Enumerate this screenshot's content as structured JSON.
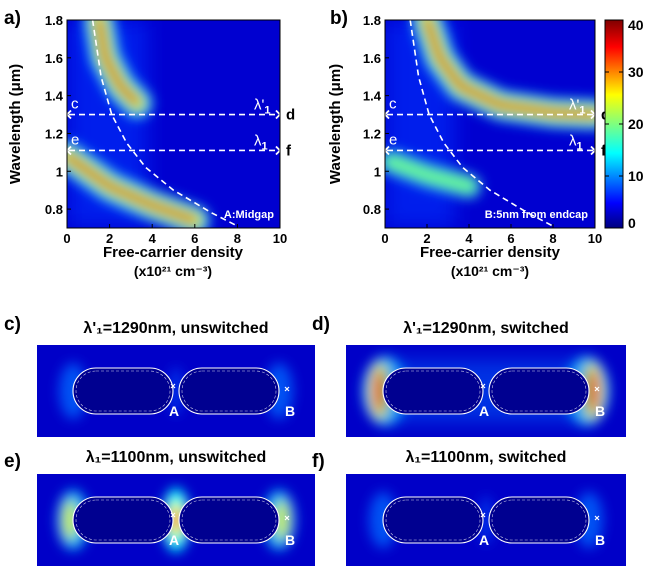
{
  "colors": {
    "jet": [
      "#00007f",
      "#0000ff",
      "#007fff",
      "#00ffff",
      "#7fff7f",
      "#ffff00",
      "#ff7f00",
      "#ff0000",
      "#7f0000"
    ]
  },
  "chart_data": [
    {
      "type": "heatmap",
      "panel": "a)",
      "corner_label": "A:Midgap",
      "xlabel": "Free-carrier density",
      "xlabel_units": "(x10²¹ cm⁻³)",
      "ylabel": "Wavelength (μm)",
      "xlim": [
        0,
        10
      ],
      "ylim": [
        0.7,
        1.8
      ],
      "xticks": [
        "0",
        "2",
        "4",
        "6",
        "8",
        "10"
      ],
      "yticks": [
        "0.8",
        "1",
        "1.2",
        "1.4",
        "1.6",
        "1.8"
      ],
      "guide_lines": [
        {
          "y": 1.3,
          "left_label": "c",
          "right_label": "d",
          "mid_label": "λ'1"
        },
        {
          "y": 1.11,
          "left_label": "e",
          "right_label": "f",
          "mid_label": "λ1"
        }
      ],
      "bands": [
        {
          "label": "upper branch",
          "points": [
            [
              1.5,
              1.8
            ],
            [
              1.8,
              1.6
            ],
            [
              2.5,
              1.45
            ],
            [
              3.3,
              1.36
            ]
          ]
        },
        {
          "label": "lower branch",
          "points": [
            [
              0,
              1.08
            ],
            [
              2.0,
              0.92
            ],
            [
              4.0,
              0.82
            ],
            [
              6.0,
              0.74
            ]
          ]
        }
      ],
      "dashed_curve": [
        [
          1.2,
          1.8
        ],
        [
          1.6,
          1.5
        ],
        [
          2.1,
          1.3
        ],
        [
          2.8,
          1.15
        ],
        [
          3.7,
          1.02
        ],
        [
          5.0,
          0.9
        ],
        [
          6.8,
          0.78
        ],
        [
          8.0,
          0.71
        ]
      ]
    },
    {
      "type": "heatmap",
      "panel": "b)",
      "corner_label": "B:5nm from endcap",
      "xlabel": "Free-carrier density",
      "xlabel_units": "(x10²¹ cm⁻³)",
      "ylabel": "Wavelength (μm)",
      "xlim": [
        0,
        10
      ],
      "ylim": [
        0.7,
        1.8
      ],
      "xticks": [
        "0",
        "2",
        "4",
        "6",
        "8",
        "10"
      ],
      "yticks": [
        "0.8",
        "1",
        "1.2",
        "1.4",
        "1.6",
        "1.8"
      ],
      "guide_lines": [
        {
          "y": 1.3,
          "left_label": "c",
          "right_label": "d",
          "mid_label": "λ'1"
        },
        {
          "y": 1.11,
          "left_label": "e",
          "right_label": "f",
          "mid_label": "λ1"
        }
      ],
      "bands": [
        {
          "label": "upper branch",
          "points": [
            [
              2.0,
              1.8
            ],
            [
              2.6,
              1.6
            ],
            [
              3.6,
              1.45
            ],
            [
              5.5,
              1.35
            ],
            [
              8.0,
              1.31
            ],
            [
              10.0,
              1.3
            ]
          ]
        },
        {
          "label": "lower branch",
          "points": [
            [
              0.3,
              1.05
            ],
            [
              2.0,
              0.98
            ],
            [
              4.0,
              0.92
            ]
          ]
        }
      ],
      "dashed_curve": [
        [
          1.2,
          1.8
        ],
        [
          1.6,
          1.5
        ],
        [
          2.1,
          1.3
        ],
        [
          2.8,
          1.15
        ],
        [
          3.7,
          1.02
        ],
        [
          5.0,
          0.9
        ],
        [
          6.8,
          0.78
        ],
        [
          8.0,
          0.71
        ]
      ],
      "colorbar": {
        "min": 0,
        "max": 40,
        "ticks": [
          "0",
          "10",
          "20",
          "30",
          "40"
        ]
      }
    }
  ],
  "field_maps": [
    {
      "panel": "c)",
      "title": "λ'₁=1290nm, unswitched",
      "hotspot": "none",
      "point_a": "A",
      "point_b": "B"
    },
    {
      "panel": "d)",
      "title": "λ'₁=1290nm, switched",
      "hotspot": "endcaps",
      "point_a": "A",
      "point_b": "B"
    },
    {
      "panel": "e)",
      "title": "λ₁=1100nm, unswitched",
      "hotspot": "midgap",
      "point_a": "A",
      "point_b": "B"
    },
    {
      "panel": "f)",
      "title": "λ₁=1100nm, switched",
      "hotspot": "none",
      "point_a": "A",
      "point_b": "B"
    }
  ]
}
